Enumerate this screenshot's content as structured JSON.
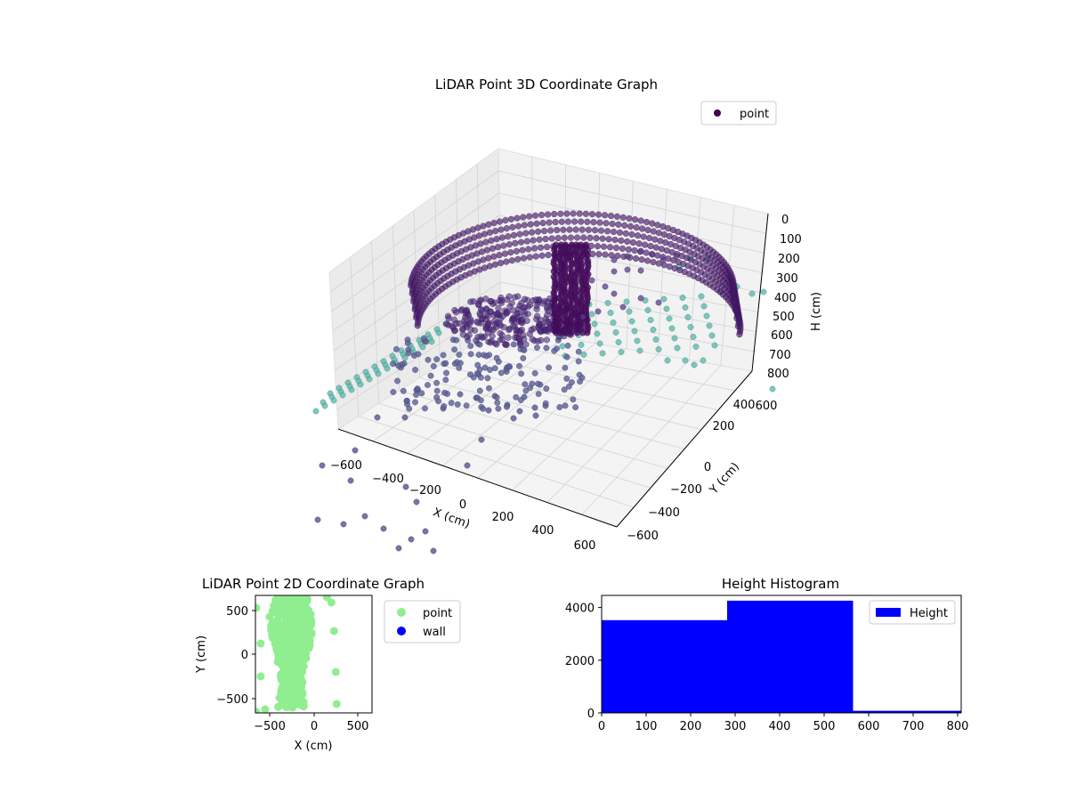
{
  "colors": {
    "point_3d_legend": "#440154",
    "point_dark": "#46186a",
    "point_mid": "#5b5f96",
    "point_teal": "#57b5a8",
    "point_2d": "#90ee90",
    "wall_2d": "#0000ff",
    "hist_bar": "#0000ff",
    "pane_back": "#f2f2f2",
    "pane_side": "#ebebeb",
    "pane_floor": "#f4f4f4",
    "grid": "#d2d2d2"
  },
  "chart_data": [
    {
      "type": "scatter",
      "title": "LiDAR Point 3D Coordinate Graph",
      "xlabel": "X (cm)",
      "ylabel": "Y (cm)",
      "zlabel": "H (cm)",
      "x_ticks": [
        "−600",
        "−400",
        "−200",
        "0",
        "200",
        "400",
        "600"
      ],
      "y_ticks": [
        "−600",
        "−400",
        "−200",
        "0",
        "200",
        "400",
        "600"
      ],
      "z_ticks": [
        "0",
        "100",
        "200",
        "300",
        "400",
        "500",
        "600",
        "700",
        "800"
      ],
      "xlim": [
        -700,
        700
      ],
      "ylim": [
        -700,
        700
      ],
      "zlim": [
        0,
        800
      ],
      "z_inverted": true,
      "grid": true,
      "legend": [
        "point"
      ],
      "legend_position": "top-right",
      "description_series": {
        "name": "point",
        "structures": [
          "curved wall arc (height 0–600)",
          "floor plane (height ~600)",
          "pillar (height 0–600)",
          "scattered low points"
        ]
      }
    },
    {
      "type": "scatter",
      "title": "LiDAR Point 2D Coordinate Graph",
      "xlabel": "X (cm)",
      "ylabel": "Y (cm)",
      "x_ticks": [
        "−500",
        "0",
        "500"
      ],
      "y_ticks": [
        "−500",
        "0",
        "500"
      ],
      "xlim": [
        -660,
        660
      ],
      "ylim": [
        -660,
        660
      ],
      "legend": [
        "point",
        "wall"
      ],
      "legend_position": "outside-right"
    },
    {
      "type": "bar",
      "title": "Height Histogram",
      "x_ticks": [
        "0",
        "100",
        "200",
        "300",
        "400",
        "500",
        "600",
        "700",
        "800"
      ],
      "y_ticks": [
        "0",
        "2000",
        "4000"
      ],
      "xlim": [
        0,
        808
      ],
      "ylim": [
        0,
        4460
      ],
      "bins": [
        {
          "start": 0,
          "end": 282,
          "value": 3520
        },
        {
          "start": 282,
          "end": 565,
          "value": 4260
        },
        {
          "start": 565,
          "end": 808,
          "value": 80
        }
      ],
      "legend": [
        "Height"
      ],
      "legend_position": "top-right"
    }
  ]
}
